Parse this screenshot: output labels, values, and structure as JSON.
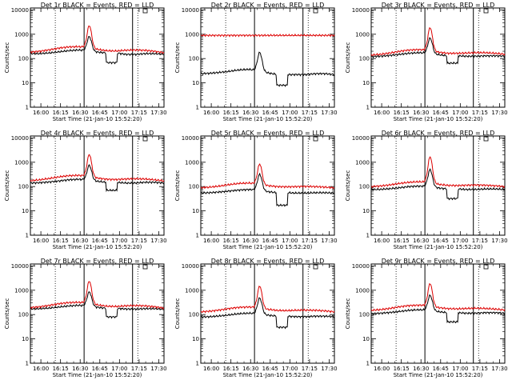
{
  "chart_data": [
    {
      "type": "line",
      "title": "Det 1r BLACK = Events, RED = LLD",
      "xlabel": "Start Time (21-Jan-10 15:52:20)",
      "ylabel": "Counts/sec",
      "ylog": true,
      "ylim": [
        1,
        12000
      ],
      "xlim": [
        "15:52",
        "17:34"
      ],
      "x_ticks": [
        "16:00",
        "16:15",
        "16:30",
        "16:45",
        "17:00",
        "17:15",
        "17:30"
      ],
      "y_ticks": [
        "1",
        "10",
        "100",
        "1000",
        "10000"
      ],
      "dotted_lines": [
        "16:11",
        "17:14"
      ],
      "solid_lines": [
        "16:33",
        "17:10"
      ],
      "series": [
        {
          "name": "Events",
          "color": "#000000",
          "base": [
            160,
            160,
            170,
            190,
            210,
            225,
            215,
            185,
            170,
            170,
            150,
            148,
            160,
            160,
            150
          ],
          "peak_at": "16:37",
          "peak_value": 800,
          "dip": {
            "from": "16:50",
            "to": "16:58",
            "value": 68
          }
        },
        {
          "name": "LLD",
          "color": "#dd0000",
          "base": [
            185,
            200,
            230,
            270,
            300,
            310,
            290,
            240,
            210,
            205,
            220,
            225,
            220,
            200,
            175
          ],
          "peak_at": "16:37",
          "peak_value": 2300,
          "dip": null
        }
      ]
    },
    {
      "type": "line",
      "title": "Det 2r BLACK = Events, RED = LLD",
      "xlabel": "Start Time (21-Jan-10 15:52:20)",
      "ylabel": "Counts/sec",
      "ylog": true,
      "ylim": [
        1,
        12000
      ],
      "xlim": [
        "15:52",
        "17:34"
      ],
      "x_ticks": [
        "16:00",
        "16:15",
        "16:30",
        "16:45",
        "17:00",
        "17:15",
        "17:30"
      ],
      "y_ticks": [
        "1",
        "10",
        "100",
        "1000",
        "10000"
      ],
      "dotted_lines": [
        "16:11",
        "17:14"
      ],
      "solid_lines": [
        "16:33",
        "17:10"
      ],
      "series": [
        {
          "name": "Events",
          "color": "#000000",
          "base": [
            24,
            25,
            27,
            30,
            34,
            36,
            32,
            26,
            22,
            22,
            22,
            22,
            24,
            24,
            22
          ],
          "peak_at": "16:37",
          "peak_value": 180,
          "dip": {
            "from": "16:50",
            "to": "16:58",
            "value": 8
          }
        },
        {
          "name": "LLD",
          "color": "#dd0000",
          "base": [
            900,
            900,
            900,
            900,
            900,
            900,
            900,
            900,
            900,
            900,
            900,
            900,
            900,
            900,
            900
          ],
          "peak_at": "16:37",
          "peak_value": 900,
          "dip": null
        }
      ]
    },
    {
      "type": "line",
      "title": "Det 3r BLACK = Events, RED = LLD",
      "xlabel": "Start Time (21-Jan-10 15:52:20)",
      "ylabel": "Counts/sec",
      "ylog": true,
      "ylim": [
        1,
        12000
      ],
      "xlim": [
        "15:52",
        "17:34"
      ],
      "x_ticks": [
        "16:00",
        "16:15",
        "16:30",
        "16:45",
        "17:00",
        "17:15",
        "17:30"
      ],
      "y_ticks": [
        "1",
        "10",
        "100",
        "1000",
        "10000"
      ],
      "dotted_lines": [
        "16:11",
        "17:14"
      ],
      "solid_lines": [
        "16:33",
        "17:10"
      ],
      "series": [
        {
          "name": "Events",
          "color": "#000000",
          "base": [
            120,
            125,
            135,
            150,
            165,
            175,
            165,
            145,
            130,
            130,
            125,
            125,
            130,
            130,
            125
          ],
          "peak_at": "16:37",
          "peak_value": 700,
          "dip": {
            "from": "16:50",
            "to": "16:58",
            "value": 65
          }
        },
        {
          "name": "LLD",
          "color": "#dd0000",
          "base": [
            140,
            150,
            170,
            200,
            225,
            235,
            220,
            185,
            165,
            165,
            170,
            175,
            175,
            165,
            150
          ],
          "peak_at": "16:37",
          "peak_value": 1900,
          "dip": null
        }
      ]
    },
    {
      "type": "line",
      "title": "Det 4r BLACK = Events, RED = LLD",
      "xlabel": "Start Time (21-Jan-10 15:52:20)",
      "ylabel": "Counts/sec",
      "ylog": true,
      "ylim": [
        1,
        12000
      ],
      "xlim": [
        "15:52",
        "17:34"
      ],
      "x_ticks": [
        "16:00",
        "16:15",
        "16:30",
        "16:45",
        "17:00",
        "17:15",
        "17:30"
      ],
      "y_ticks": [
        "1",
        "10",
        "100",
        "1000",
        "10000"
      ],
      "dotted_lines": [
        "16:11",
        "17:14"
      ],
      "solid_lines": [
        "16:33",
        "17:10"
      ],
      "series": [
        {
          "name": "Events",
          "color": "#000000",
          "base": [
            140,
            145,
            155,
            170,
            190,
            200,
            190,
            165,
            150,
            150,
            140,
            140,
            150,
            150,
            140
          ],
          "peak_at": "16:37",
          "peak_value": 750,
          "dip": {
            "from": "16:50",
            "to": "16:58",
            "value": 70
          }
        },
        {
          "name": "LLD",
          "color": "#dd0000",
          "base": [
            175,
            190,
            215,
            250,
            280,
            290,
            270,
            225,
            200,
            195,
            205,
            210,
            205,
            190,
            170
          ],
          "peak_at": "16:37",
          "peak_value": 2100,
          "dip": null
        }
      ]
    },
    {
      "type": "line",
      "title": "Det 5r BLACK = Events, RED = LLD",
      "xlabel": "Start Time (21-Jan-10 15:52:20)",
      "ylabel": "Counts/sec",
      "ylog": true,
      "ylim": [
        1,
        12000
      ],
      "xlim": [
        "15:52",
        "17:34"
      ],
      "x_ticks": [
        "16:00",
        "16:15",
        "16:30",
        "16:45",
        "17:00",
        "17:15",
        "17:30"
      ],
      "y_ticks": [
        "1",
        "10",
        "100",
        "1000",
        "10000"
      ],
      "dotted_lines": [
        "16:11",
        "17:14"
      ],
      "solid_lines": [
        "16:33",
        "17:10"
      ],
      "series": [
        {
          "name": "Events",
          "color": "#000000",
          "base": [
            55,
            56,
            60,
            66,
            72,
            76,
            72,
            62,
            56,
            56,
            54,
            54,
            56,
            56,
            54
          ],
          "peak_at": "16:37",
          "peak_value": 320,
          "dip": {
            "from": "16:50",
            "to": "16:58",
            "value": 17
          }
        },
        {
          "name": "LLD",
          "color": "#dd0000",
          "base": [
            90,
            95,
            105,
            120,
            135,
            140,
            130,
            110,
            100,
            98,
            100,
            102,
            100,
            95,
            88
          ],
          "peak_at": "16:37",
          "peak_value": 850,
          "dip": null
        }
      ]
    },
    {
      "type": "line",
      "title": "Det 6r BLACK = Events, RED = LLD",
      "xlabel": "Start Time (21-Jan-10 15:52:20)",
      "ylabel": "Counts/sec",
      "ylog": true,
      "ylim": [
        1,
        12000
      ],
      "xlim": [
        "15:52",
        "17:34"
      ],
      "x_ticks": [
        "16:00",
        "16:15",
        "16:30",
        "16:45",
        "17:00",
        "17:15",
        "17:30"
      ],
      "y_ticks": [
        "1",
        "10",
        "100",
        "1000",
        "10000"
      ],
      "dotted_lines": [
        "16:11",
        "17:14"
      ],
      "solid_lines": [
        "16:33",
        "17:10"
      ],
      "series": [
        {
          "name": "Events",
          "color": "#000000",
          "base": [
            75,
            77,
            82,
            90,
            100,
            105,
            100,
            88,
            80,
            80,
            76,
            76,
            80,
            80,
            76
          ],
          "peak_at": "16:37",
          "peak_value": 500,
          "dip": {
            "from": "16:50",
            "to": "16:58",
            "value": 32
          }
        },
        {
          "name": "LLD",
          "color": "#dd0000",
          "base": [
            100,
            106,
            118,
            135,
            150,
            158,
            148,
            125,
            112,
            110,
            114,
            116,
            114,
            108,
            100
          ],
          "peak_at": "16:37",
          "peak_value": 1700,
          "dip": null
        }
      ]
    },
    {
      "type": "line",
      "title": "Det 7r BLACK = Events, RED = LLD",
      "xlabel": "Start Time (21-Jan-10 15:52:20)",
      "ylabel": "Counts/sec",
      "ylog": true,
      "ylim": [
        1,
        12000
      ],
      "xlim": [
        "15:52",
        "17:34"
      ],
      "x_ticks": [
        "16:00",
        "16:15",
        "16:30",
        "16:45",
        "17:00",
        "17:15",
        "17:30"
      ],
      "y_ticks": [
        "1",
        "10",
        "100",
        "1000",
        "10000"
      ],
      "dotted_lines": [
        "16:11",
        "17:14"
      ],
      "solid_lines": [
        "16:33",
        "17:10"
      ],
      "series": [
        {
          "name": "Events",
          "color": "#000000",
          "base": [
            170,
            175,
            185,
            205,
            225,
            240,
            230,
            200,
            180,
            180,
            170,
            168,
            175,
            175,
            165
          ],
          "peak_at": "16:37",
          "peak_value": 850,
          "dip": {
            "from": "16:50",
            "to": "16:58",
            "value": 80
          }
        },
        {
          "name": "LLD",
          "color": "#dd0000",
          "base": [
            195,
            210,
            240,
            280,
            310,
            320,
            300,
            250,
            220,
            215,
            230,
            235,
            230,
            210,
            185
          ],
          "peak_at": "16:37",
          "peak_value": 2400,
          "dip": null
        }
      ]
    },
    {
      "type": "line",
      "title": "Det 8r BLACK = Events, RED = LLD",
      "xlabel": "Start Time (21-Jan-10 15:52:20)",
      "ylabel": "Counts/sec",
      "ylog": true,
      "ylim": [
        1,
        12000
      ],
      "xlim": [
        "15:52",
        "17:34"
      ],
      "x_ticks": [
        "16:00",
        "16:15",
        "16:30",
        "16:45",
        "17:00",
        "17:15",
        "17:30"
      ],
      "y_ticks": [
        "1",
        "10",
        "100",
        "1000",
        "10000"
      ],
      "dotted_lines": [
        "16:11",
        "17:14"
      ],
      "solid_lines": [
        "16:33",
        "17:10"
      ],
      "series": [
        {
          "name": "Events",
          "color": "#000000",
          "base": [
            80,
            82,
            88,
            97,
            108,
            114,
            108,
            95,
            86,
            86,
            82,
            82,
            86,
            86,
            82
          ],
          "peak_at": "16:37",
          "peak_value": 480,
          "dip": {
            "from": "16:50",
            "to": "16:58",
            "value": 30
          }
        },
        {
          "name": "LLD",
          "color": "#dd0000",
          "base": [
            130,
            138,
            155,
            178,
            198,
            206,
            194,
            165,
            148,
            145,
            150,
            152,
            150,
            142,
            130
          ],
          "peak_at": "16:37",
          "peak_value": 1500,
          "dip": null
        }
      ]
    },
    {
      "type": "line",
      "title": "Det 9r BLACK = Events, RED = LLD",
      "xlabel": "Start Time (21-Jan-10 15:52:20)",
      "ylabel": "Counts/sec",
      "ylog": true,
      "ylim": [
        1,
        12000
      ],
      "xlim": [
        "15:52",
        "17:34"
      ],
      "x_ticks": [
        "16:00",
        "16:15",
        "16:30",
        "16:45",
        "17:00",
        "17:15",
        "17:30"
      ],
      "y_ticks": [
        "1",
        "10",
        "100",
        "1000",
        "10000"
      ],
      "dotted_lines": [
        "16:11",
        "17:14"
      ],
      "solid_lines": [
        "16:33",
        "17:10"
      ],
      "series": [
        {
          "name": "Events",
          "color": "#000000",
          "base": [
            110,
            114,
            122,
            135,
            150,
            158,
            150,
            132,
            120,
            120,
            114,
            114,
            120,
            120,
            114
          ],
          "peak_at": "16:37",
          "peak_value": 620,
          "dip": {
            "from": "16:50",
            "to": "16:58",
            "value": 50
          }
        },
        {
          "name": "LLD",
          "color": "#dd0000",
          "base": [
            150,
            160,
            180,
            210,
            235,
            245,
            230,
            195,
            175,
            172,
            178,
            182,
            178,
            168,
            155
          ],
          "peak_at": "16:37",
          "peak_value": 1900,
          "dip": null
        }
      ]
    }
  ]
}
